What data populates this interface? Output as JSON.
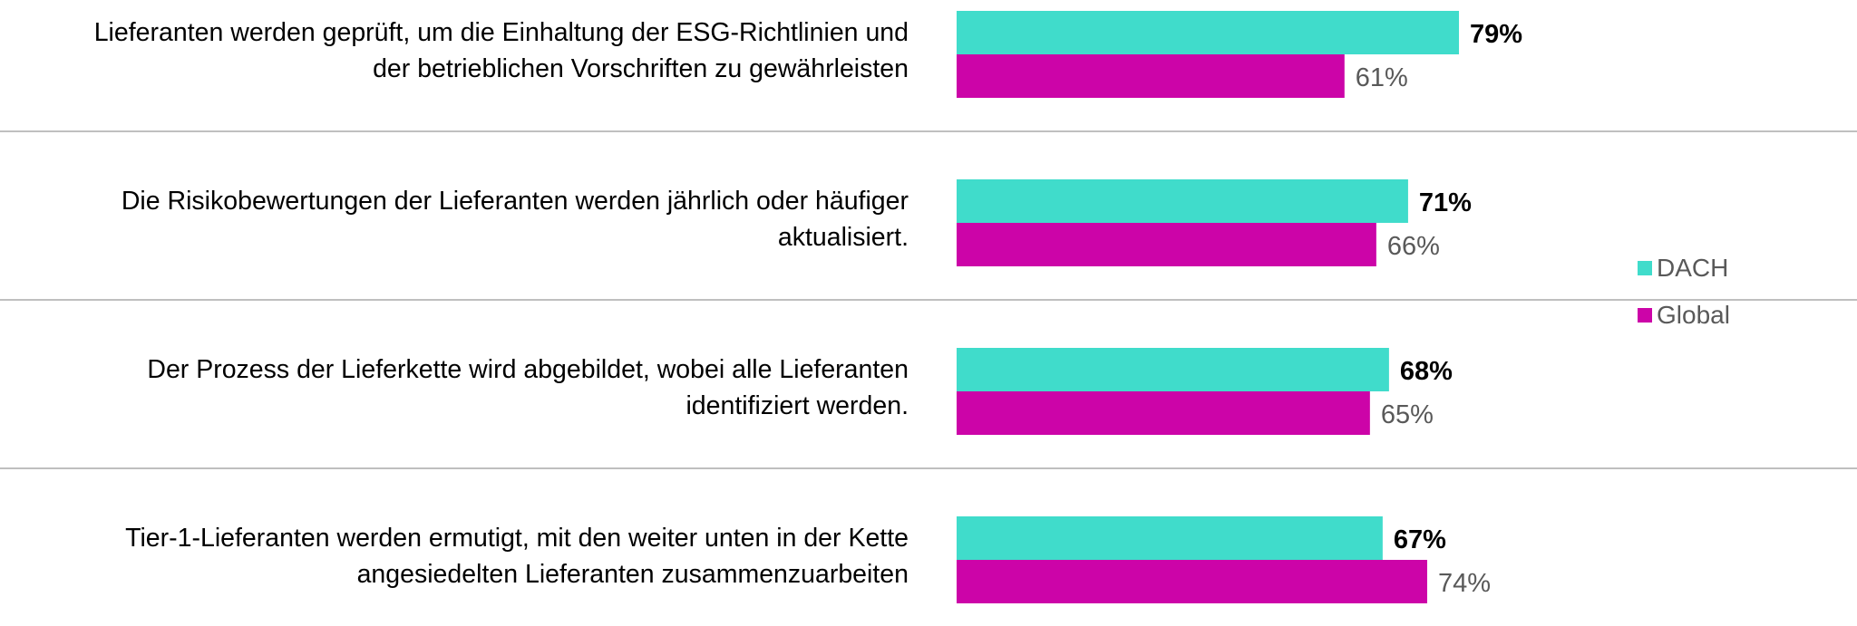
{
  "chart_data": {
    "type": "bar",
    "orientation": "horizontal",
    "categories": [
      [
        "Lieferanten werden geprüft, um die Einhaltung der ESG-Richtlinien und",
        "der betrieblichen Vorschriften zu gewährleisten"
      ],
      [
        "Die Risikobewertungen der Lieferanten werden jährlich oder häufiger",
        "aktualisiert."
      ],
      [
        "Der Prozess der Lieferkette wird abgebildet, wobei alle Lieferanten",
        "identifiziert werden."
      ],
      [
        "Tier-1-Lieferanten werden ermutigt, mit den weiter unten in der Kette",
        "angesiedelten Lieferanten zusammenzuarbeiten"
      ]
    ],
    "series": [
      {
        "name": "DACH",
        "color": "#40DCCB",
        "values": [
          79,
          71,
          68,
          67
        ],
        "labels": [
          "79%",
          "71%",
          "68%",
          "67%"
        ],
        "label_bold": true
      },
      {
        "name": "Global",
        "color": "#CC04A8",
        "values": [
          61,
          66,
          65,
          74
        ],
        "labels": [
          "61%",
          "66%",
          "65%",
          "74%"
        ],
        "label_bold": false
      }
    ],
    "value_unit": "%",
    "xlim": [
      0,
      100
    ],
    "legend_position": "right",
    "grid": false,
    "separators": true
  }
}
